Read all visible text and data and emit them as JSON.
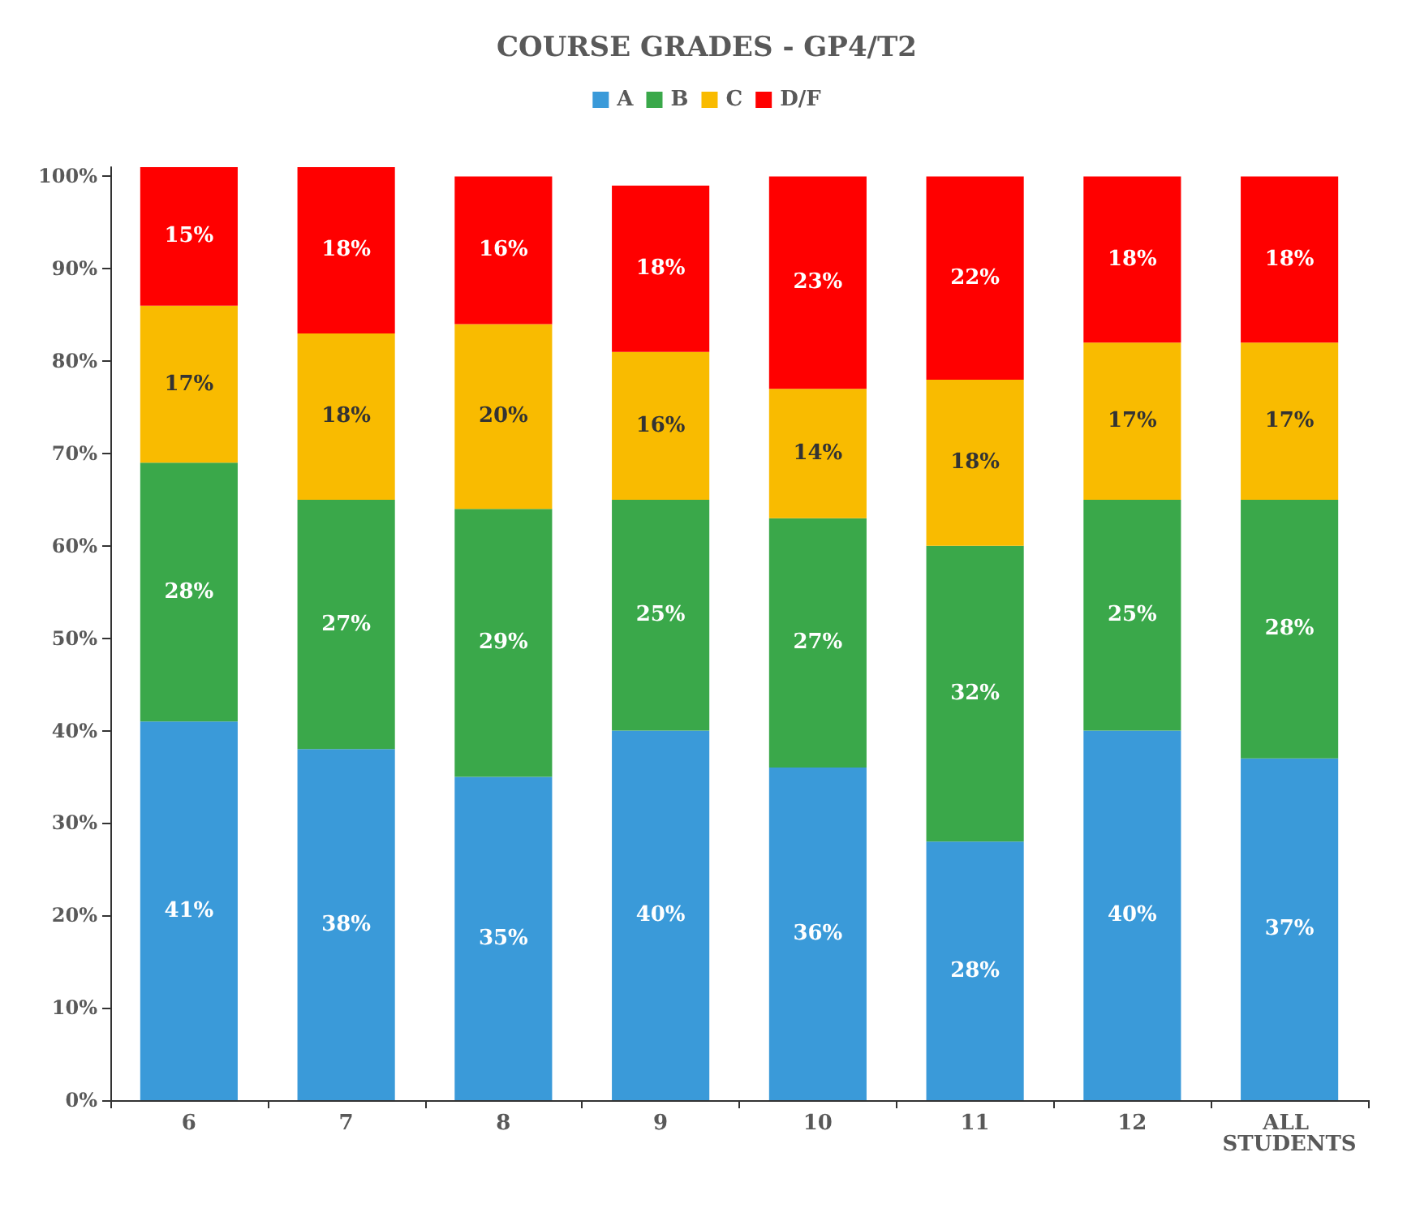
{
  "chart_data": {
    "type": "bar",
    "title": "COURSE GRADES - GP4/T2",
    "stacked": true,
    "legend": "top",
    "grid": false,
    "categories": [
      "6",
      "7",
      "8",
      "9",
      "10",
      "11",
      "12",
      "ALL STUDENTS"
    ],
    "ylim": [
      0,
      101
    ],
    "yticks": [
      {
        "value": 0,
        "label": "0%"
      },
      {
        "value": 10,
        "label": "10%"
      },
      {
        "value": 20,
        "label": "20%"
      },
      {
        "value": 30,
        "label": "30%"
      },
      {
        "value": 40,
        "label": "40%"
      },
      {
        "value": 50,
        "label": "50%"
      },
      {
        "value": 60,
        "label": "60%"
      },
      {
        "value": 70,
        "label": "70%"
      },
      {
        "value": 80,
        "label": "80%"
      },
      {
        "value": 90,
        "label": "90%"
      },
      {
        "value": 100,
        "label": "100%"
      }
    ],
    "series": [
      {
        "name": "A",
        "color": "#3a9ad9",
        "values": [
          41,
          38,
          35,
          40,
          36,
          28,
          40,
          37
        ],
        "value_labels": [
          "41%",
          "38%",
          "35%",
          "40%",
          "36%",
          "28%",
          "40%",
          "37%"
        ]
      },
      {
        "name": "B",
        "color": "#3aa84a",
        "values": [
          28,
          27,
          29,
          25,
          27,
          32,
          25,
          28
        ],
        "value_labels": [
          "28%",
          "27%",
          "29%",
          "25%",
          "27%",
          "32%",
          "25%",
          "28%"
        ]
      },
      {
        "name": "C",
        "color": "#f9bb00",
        "values": [
          17,
          18,
          20,
          16,
          14,
          18,
          17,
          17
        ],
        "value_labels": [
          "17%",
          "18%",
          "20%",
          "16%",
          "14%",
          "18%",
          "17%",
          "17%"
        ]
      },
      {
        "name": "D/F",
        "color": "#ff0000",
        "values": [
          15,
          18,
          16,
          18,
          23,
          22,
          18,
          18
        ],
        "value_labels": [
          "15%",
          "18%",
          "16%",
          "18%",
          "23%",
          "22%",
          "18%",
          "18%"
        ]
      }
    ]
  }
}
